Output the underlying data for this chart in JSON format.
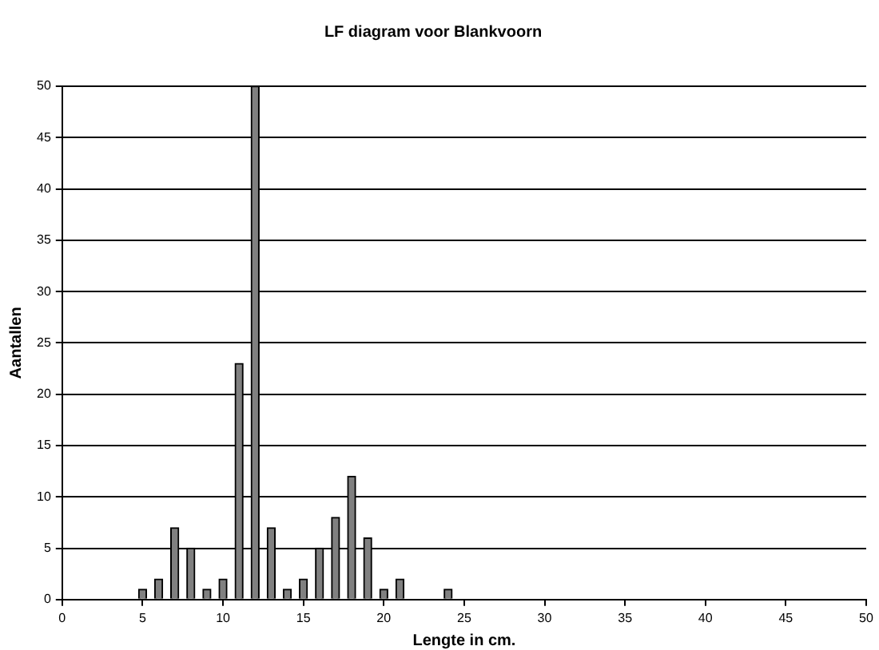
{
  "chart_data": {
    "type": "bar",
    "title": "LF diagram voor Blankvoorn",
    "xlabel": "Lengte in cm.",
    "ylabel": "Aantallen",
    "x": [
      5,
      6,
      7,
      8,
      9,
      10,
      11,
      12,
      13,
      14,
      15,
      16,
      17,
      18,
      19,
      20,
      21,
      24
    ],
    "values": [
      1,
      2,
      7,
      5,
      1,
      2,
      23,
      50,
      7,
      1,
      2,
      5,
      8,
      12,
      6,
      1,
      2,
      1
    ],
    "color": "#808080",
    "xlim": [
      0,
      50
    ],
    "xticks": [
      0,
      5,
      10,
      15,
      20,
      25,
      30,
      35,
      40,
      45,
      50
    ],
    "ylim": [
      0,
      50
    ],
    "yticks": [
      0,
      5,
      10,
      15,
      20,
      25,
      30,
      35,
      40,
      45,
      50
    ],
    "grid": "y",
    "legend": false
  }
}
